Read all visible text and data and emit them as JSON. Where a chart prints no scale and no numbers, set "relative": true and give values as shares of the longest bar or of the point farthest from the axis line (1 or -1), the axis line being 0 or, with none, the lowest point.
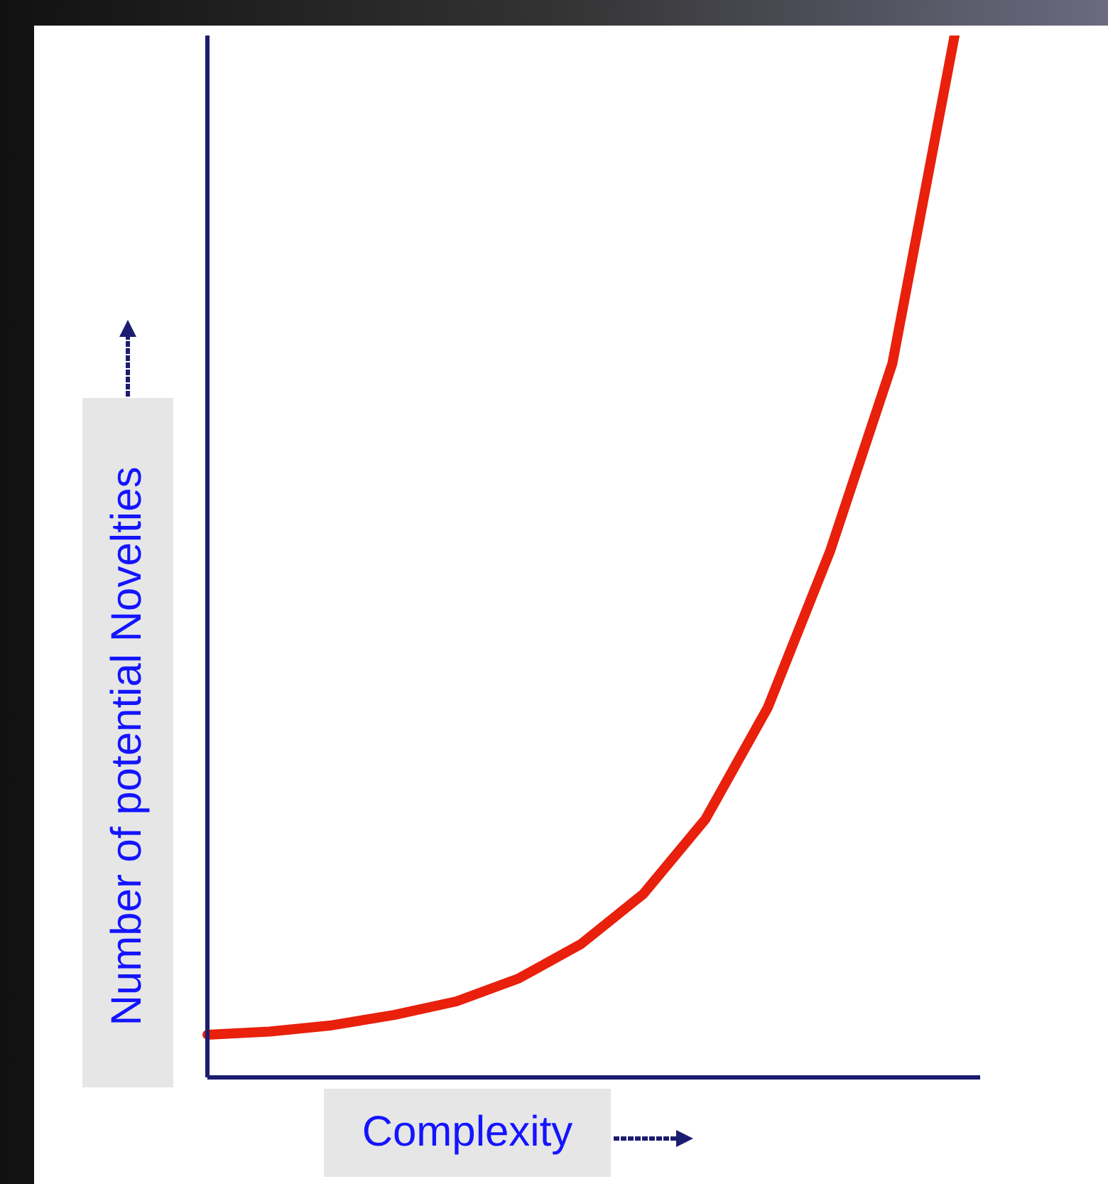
{
  "chart_data": {
    "type": "line",
    "relative": true,
    "xlabel": "Complexity",
    "ylabel": "Number of potential Novelties",
    "categories": [
      null,
      null,
      null,
      null,
      null,
      null,
      null,
      null,
      null,
      null,
      null,
      null,
      null
    ],
    "series": [
      {
        "color": "#e8200c",
        "values": [
          0.041,
          0.044,
          0.05,
          0.06,
          0.073,
          0.095,
          0.128,
          0.176,
          0.248,
          0.355,
          0.505,
          0.685,
          1.0
        ]
      }
    ]
  }
}
